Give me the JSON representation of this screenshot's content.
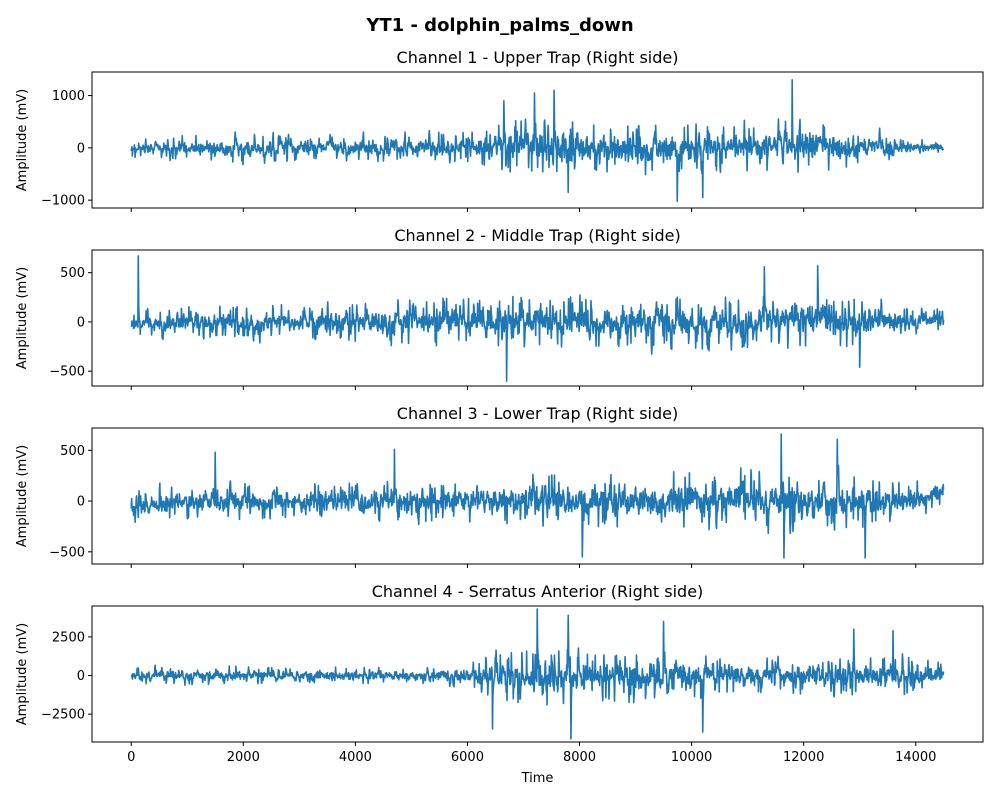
{
  "chart_data": {
    "type": "line",
    "title": "YT1 - dolphin_palms_down",
    "xlabel": "Time",
    "xlim": [
      -700,
      15200
    ],
    "xticks": [
      0,
      2000,
      4000,
      6000,
      8000,
      10000,
      12000,
      14000
    ],
    "line_color": "#1f77b4",
    "n_samples": 14500,
    "panels": [
      {
        "title": "Channel 1 - Upper Trap (Right side)",
        "ylabel": "Amplitude (mV)",
        "ylim": [
          -1150,
          1450
        ],
        "yticks": [
          -1000,
          0,
          1000
        ],
        "envelope": [
          {
            "x": 0,
            "max": 250,
            "min": -250
          },
          {
            "x": 1000,
            "max": 350,
            "min": -350
          },
          {
            "x": 2000,
            "max": 400,
            "min": -450
          },
          {
            "x": 3000,
            "max": 350,
            "min": -350
          },
          {
            "x": 4000,
            "max": 350,
            "min": -350
          },
          {
            "x": 5000,
            "max": 450,
            "min": -450
          },
          {
            "x": 6000,
            "max": 450,
            "min": -450
          },
          {
            "x": 6700,
            "max": 750,
            "min": -750
          },
          {
            "x": 7500,
            "max": 850,
            "min": -800
          },
          {
            "x": 8500,
            "max": 700,
            "min": -700
          },
          {
            "x": 9500,
            "max": 750,
            "min": -800
          },
          {
            "x": 10500,
            "max": 650,
            "min": -650
          },
          {
            "x": 11500,
            "max": 800,
            "min": -700
          },
          {
            "x": 12500,
            "max": 700,
            "min": -650
          },
          {
            "x": 13500,
            "max": 400,
            "min": -400
          },
          {
            "x": 14500,
            "max": 150,
            "min": -150
          }
        ],
        "spikes": [
          {
            "x": 11800,
            "y": 1300
          },
          {
            "x": 7550,
            "y": 1100
          },
          {
            "x": 7200,
            "y": 1050
          },
          {
            "x": 9750,
            "y": -1020
          },
          {
            "x": 6650,
            "y": 900
          },
          {
            "x": 7800,
            "y": -850
          },
          {
            "x": 10200,
            "y": -950
          }
        ]
      },
      {
        "title": "Channel 2 - Middle Trap (Right side)",
        "ylabel": "Amplitude (mV)",
        "ylim": [
          -650,
          730
        ],
        "yticks": [
          -500,
          0,
          500
        ],
        "envelope": [
          {
            "x": 0,
            "max": 150,
            "min": -200
          },
          {
            "x": 1000,
            "max": 250,
            "min": -250
          },
          {
            "x": 2000,
            "max": 250,
            "min": -250
          },
          {
            "x": 3000,
            "max": 250,
            "min": -250
          },
          {
            "x": 4000,
            "max": 300,
            "min": -300
          },
          {
            "x": 5000,
            "max": 350,
            "min": -350
          },
          {
            "x": 6000,
            "max": 350,
            "min": -350
          },
          {
            "x": 7000,
            "max": 400,
            "min": -400
          },
          {
            "x": 8000,
            "max": 400,
            "min": -400
          },
          {
            "x": 9000,
            "max": 400,
            "min": -400
          },
          {
            "x": 10000,
            "max": 400,
            "min": -400
          },
          {
            "x": 11000,
            "max": 400,
            "min": -400
          },
          {
            "x": 12000,
            "max": 450,
            "min": -400
          },
          {
            "x": 13000,
            "max": 400,
            "min": -400
          },
          {
            "x": 14000,
            "max": 200,
            "min": -200
          },
          {
            "x": 14500,
            "max": 250,
            "min": -150
          }
        ],
        "spikes": [
          {
            "x": 130,
            "y": 670
          },
          {
            "x": 6700,
            "y": -600
          },
          {
            "x": 12250,
            "y": 570
          },
          {
            "x": 11300,
            "y": 560
          },
          {
            "x": 13000,
            "y": -460
          }
        ]
      },
      {
        "title": "Channel 3 - Lower Trap (Right side)",
        "ylabel": "Amplitude (mV)",
        "ylim": [
          -620,
          720
        ],
        "yticks": [
          -500,
          0,
          500
        ],
        "envelope": [
          {
            "x": 0,
            "max": 200,
            "min": -300
          },
          {
            "x": 1000,
            "max": 250,
            "min": -250
          },
          {
            "x": 2000,
            "max": 250,
            "min": -250
          },
          {
            "x": 3000,
            "max": 250,
            "min": -250
          },
          {
            "x": 4000,
            "max": 300,
            "min": -300
          },
          {
            "x": 5000,
            "max": 300,
            "min": -300
          },
          {
            "x": 6000,
            "max": 300,
            "min": -300
          },
          {
            "x": 7000,
            "max": 400,
            "min": -350
          },
          {
            "x": 8000,
            "max": 400,
            "min": -400
          },
          {
            "x": 9000,
            "max": 400,
            "min": -400
          },
          {
            "x": 10000,
            "max": 450,
            "min": -400
          },
          {
            "x": 11000,
            "max": 450,
            "min": -450
          },
          {
            "x": 12000,
            "max": 400,
            "min": -400
          },
          {
            "x": 13000,
            "max": 400,
            "min": -400
          },
          {
            "x": 14000,
            "max": 300,
            "min": -300
          },
          {
            "x": 14500,
            "max": 300,
            "min": -100
          }
        ],
        "spikes": [
          {
            "x": 11600,
            "y": 660
          },
          {
            "x": 8050,
            "y": -550
          },
          {
            "x": 11650,
            "y": -560
          },
          {
            "x": 13100,
            "y": -560
          },
          {
            "x": 12600,
            "y": 610
          },
          {
            "x": 4700,
            "y": 510
          },
          {
            "x": 1500,
            "y": 480
          }
        ]
      },
      {
        "title": "Channel 4 - Serratus Anterior (Right side)",
        "ylabel": "Amplitude (mV)",
        "ylim": [
          -4300,
          4500
        ],
        "yticks": [
          -2500,
          0,
          2500
        ],
        "envelope": [
          {
            "x": 0,
            "max": 800,
            "min": -800
          },
          {
            "x": 1000,
            "max": 900,
            "min": -900
          },
          {
            "x": 2000,
            "max": 900,
            "min": -900
          },
          {
            "x": 3000,
            "max": 800,
            "min": -800
          },
          {
            "x": 4000,
            "max": 800,
            "min": -800
          },
          {
            "x": 5000,
            "max": 800,
            "min": -800
          },
          {
            "x": 6000,
            "max": 1000,
            "min": -1000
          },
          {
            "x": 6500,
            "max": 2200,
            "min": -2400
          },
          {
            "x": 7200,
            "max": 3000,
            "min": -3000
          },
          {
            "x": 8000,
            "max": 2500,
            "min": -2700
          },
          {
            "x": 9000,
            "max": 2300,
            "min": -2500
          },
          {
            "x": 10000,
            "max": 2300,
            "min": -2500
          },
          {
            "x": 11000,
            "max": 1800,
            "min": -1800
          },
          {
            "x": 12000,
            "max": 1800,
            "min": -1700
          },
          {
            "x": 13000,
            "max": 1800,
            "min": -1800
          },
          {
            "x": 14000,
            "max": 2000,
            "min": -2000
          },
          {
            "x": 14500,
            "max": 1200,
            "min": -1200
          }
        ],
        "spikes": [
          {
            "x": 7250,
            "y": 4300
          },
          {
            "x": 7850,
            "y": -4100
          },
          {
            "x": 7800,
            "y": 3900
          },
          {
            "x": 6450,
            "y": -3450
          },
          {
            "x": 9500,
            "y": 3500
          },
          {
            "x": 10200,
            "y": -3650
          },
          {
            "x": 12900,
            "y": 3000
          },
          {
            "x": 13600,
            "y": 2900
          }
        ]
      }
    ]
  }
}
